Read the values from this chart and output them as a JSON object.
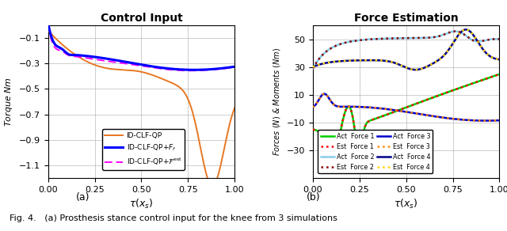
{
  "title_left": "Control Input",
  "title_right": "Force Estimation",
  "xlabel": "$\\tau(x_s)$",
  "ylabel_left": "Torque $Nm$",
  "ylabel_right": "Forces $(N)$ & Moments $(Nm)$",
  "caption_a": "(a)",
  "caption_b": "(b)",
  "fig_caption": "Fig. 4.   (a) Prosthesis stance control input for the knee from 3 simulations",
  "left_ylim": [
    -1.2,
    0.0
  ],
  "left_yticks": [
    -1.1,
    -0.9,
    -0.7,
    -0.5,
    -0.3,
    -0.1
  ],
  "left_xlim": [
    0,
    1
  ],
  "left_xticks": [
    0,
    0.25,
    0.5,
    0.75,
    1.0
  ],
  "right_ylim": [
    -50,
    60
  ],
  "right_yticks": [
    -30,
    -10,
    10,
    30,
    50
  ],
  "right_xlim": [
    0,
    1
  ],
  "right_xticks": [
    0,
    0.25,
    0.5,
    0.75,
    1.0
  ],
  "orange": "#E87722",
  "blue": "#0000FF",
  "magenta": "#FF00FF",
  "green": "#00CC00",
  "cyan": "#87CEEB",
  "dark_blue": "#0000CD",
  "navy": "#00008B",
  "red": "#FF0000",
  "dark_red": "#8B0000",
  "dark_orange": "#FF8C00",
  "gold": "#FFD700"
}
